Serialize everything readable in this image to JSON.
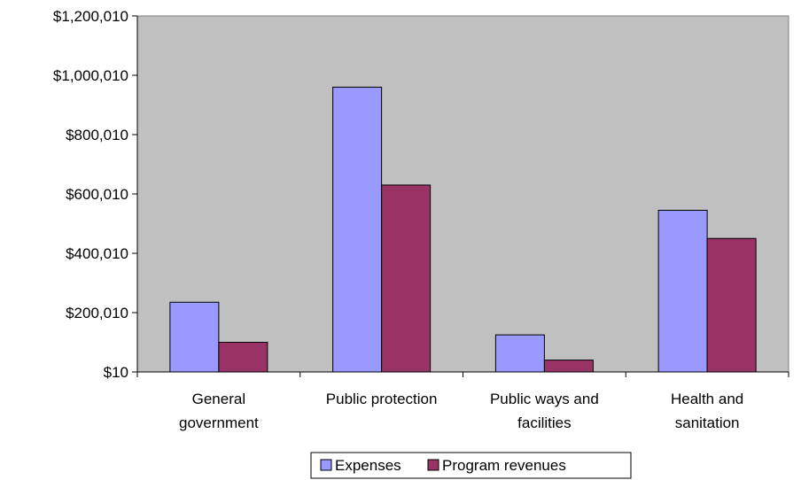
{
  "chart_data": {
    "type": "bar",
    "title": "",
    "xlabel": "",
    "ylabel": "",
    "categories": [
      [
        "General",
        "government"
      ],
      [
        "Public protection"
      ],
      [
        "Public ways and",
        "facilities"
      ],
      [
        "Health and",
        "sanitation"
      ]
    ],
    "series": [
      {
        "name": "Expenses",
        "color": "#9999ff",
        "values": [
          235000,
          960000,
          125000,
          545000
        ]
      },
      {
        "name": "Program revenues",
        "color": "#993366",
        "values": [
          100000,
          630000,
          40000,
          450000
        ]
      }
    ],
    "y_ticks": [
      10,
      200010,
      400010,
      600010,
      800010,
      1000010,
      1200010
    ],
    "y_tick_labels": [
      "$10",
      "$200,010",
      "$400,010",
      "$600,010",
      "$800,010",
      "$1,000,010",
      "$1,200,010"
    ],
    "ylim": [
      10,
      1200010
    ],
    "grid": false,
    "plot_background": "#c0c0c0",
    "legend_position": "bottom"
  }
}
